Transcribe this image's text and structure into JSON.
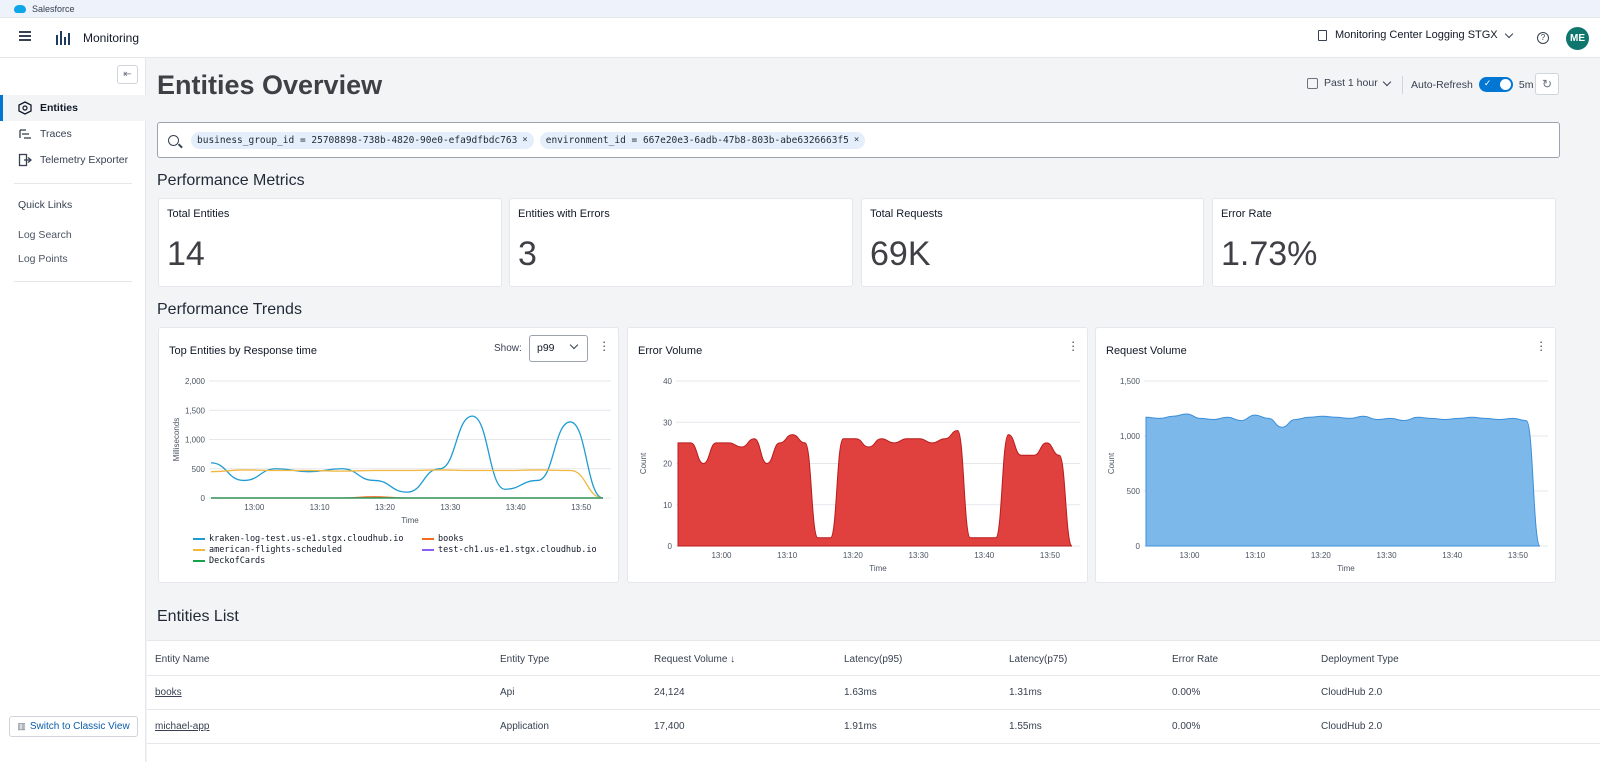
{
  "browser": {
    "tab_label": "Salesforce"
  },
  "appbar": {
    "title": "Monitoring",
    "environment": "Monitoring Center Logging STGX",
    "avatar_initials": "ME"
  },
  "sidebar": {
    "items": [
      {
        "label": "Entities",
        "icon": "entities-icon",
        "active": true
      },
      {
        "label": "Traces",
        "icon": "traces-icon",
        "active": false
      },
      {
        "label": "Telemetry Exporter",
        "icon": "exporter-icon",
        "active": false
      }
    ],
    "quick_links_heading": "Quick Links",
    "quick_links": [
      "Log Search",
      "Log Points"
    ],
    "classic_view_button": "Switch to Classic View"
  },
  "header": {
    "title": "Entities Overview",
    "time_range": "Past 1 hour",
    "auto_refresh_label": "Auto-Refresh",
    "auto_refresh_enabled": true,
    "refresh_interval": "5m"
  },
  "filters": [
    {
      "text": "business_group_id = 25708898-738b-4820-90e0-efa9dfbdc763",
      "remove": "×"
    },
    {
      "text": "environment_id = 667e20e3-6adb-47b8-803b-abe6326663f5",
      "remove": "×"
    }
  ],
  "performance_metrics": {
    "title": "Performance Metrics",
    "cards": [
      {
        "label": "Total Entities",
        "value": "14"
      },
      {
        "label": "Entities with Errors",
        "value": "3"
      },
      {
        "label": "Total Requests",
        "value": "69K"
      },
      {
        "label": "Error Rate",
        "value": "1.73%"
      }
    ]
  },
  "performance_trends": {
    "title": "Performance Trends",
    "show_label": "Show:",
    "show_value": "p99"
  },
  "chart_data": [
    {
      "type": "line",
      "title": "Top Entities by Response time",
      "xlabel": "Time",
      "ylabel": "Milliseconds",
      "ylim": [
        0,
        2000
      ],
      "yticks": [
        "2,000",
        "1,500",
        "1,000",
        "500",
        "0"
      ],
      "x": [
        "12:55",
        "13:00",
        "13:05",
        "13:10",
        "13:15",
        "13:20",
        "13:25",
        "13:30",
        "13:35",
        "13:40",
        "13:45",
        "13:50",
        "13:51"
      ],
      "xticks": [
        "13:00",
        "13:10",
        "13:20",
        "13:30",
        "13:40",
        "13:50"
      ],
      "series": [
        {
          "name": "kraken-log-test.us-e1.stgx.cloudhub.io",
          "color": "#1f9bd1",
          "values": [
            600,
            300,
            500,
            450,
            500,
            300,
            100,
            500,
            1400,
            150,
            300,
            1300,
            0
          ]
        },
        {
          "name": "books",
          "color": "#f26b21",
          "values": [
            0,
            0,
            0,
            0,
            0,
            20,
            0,
            0,
            0,
            0,
            0,
            0,
            0
          ]
        },
        {
          "name": "american-flights-scheduled",
          "color": "#f2b73f",
          "values": [
            450,
            480,
            470,
            470,
            460,
            470,
            470,
            480,
            470,
            470,
            480,
            470,
            0
          ]
        },
        {
          "name": "test-ch1.us-e1.stgx.cloudhub.io",
          "color": "#8b5cf6",
          "values": [
            0,
            0,
            0,
            0,
            0,
            0,
            0,
            0,
            0,
            0,
            0,
            0,
            0
          ]
        },
        {
          "name": "DeckofCards",
          "color": "#16a34a",
          "values": [
            0,
            0,
            0,
            0,
            0,
            0,
            0,
            0,
            0,
            0,
            0,
            0,
            0
          ]
        }
      ]
    },
    {
      "type": "area",
      "title": "Error Volume",
      "xlabel": "Time",
      "ylabel": "Count",
      "ylim": [
        0,
        40
      ],
      "yticks": [
        "40",
        "30",
        "20",
        "10",
        "0"
      ],
      "xticks": [
        "13:00",
        "13:10",
        "13:20",
        "13:30",
        "13:40",
        "13:50"
      ],
      "color": "#e0403e",
      "values": [
        25,
        25,
        20,
        25,
        25,
        24,
        26,
        20,
        25,
        27,
        25,
        2,
        2,
        26,
        26,
        24,
        26,
        25,
        26,
        26,
        25,
        26,
        28,
        2,
        2,
        2,
        27,
        22,
        22,
        25,
        22,
        0
      ]
    },
    {
      "type": "area",
      "title": "Request Volume",
      "xlabel": "Time",
      "ylabel": "Count",
      "ylim": [
        0,
        1500
      ],
      "yticks": [
        "1,500",
        "1,000",
        "500",
        "0"
      ],
      "xticks": [
        "13:00",
        "13:10",
        "13:20",
        "13:30",
        "13:40",
        "13:50"
      ],
      "color": "#7db8ea",
      "values": [
        1170,
        1160,
        1180,
        1200,
        1160,
        1150,
        1170,
        1140,
        1190,
        1160,
        1080,
        1150,
        1170,
        1180,
        1170,
        1160,
        1180,
        1150,
        1160,
        1140,
        1170,
        1160,
        1150,
        1160,
        1170,
        1160,
        1150,
        1160,
        1140,
        0
      ]
    }
  ],
  "entities_list": {
    "title": "Entities List",
    "columns": [
      "Entity Name",
      "Entity Type",
      "Request Volume ↓",
      "Latency(p95)",
      "Latency(p75)",
      "Error Rate",
      "Deployment Type"
    ],
    "rows": [
      [
        "books",
        "Api",
        "24,124",
        "1.63ms",
        "1.31ms",
        "0.00%",
        "CloudHub 2.0"
      ],
      [
        "michael-app",
        "Application",
        "17,400",
        "1.91ms",
        "1.55ms",
        "0.00%",
        "CloudHub 2.0"
      ]
    ]
  }
}
